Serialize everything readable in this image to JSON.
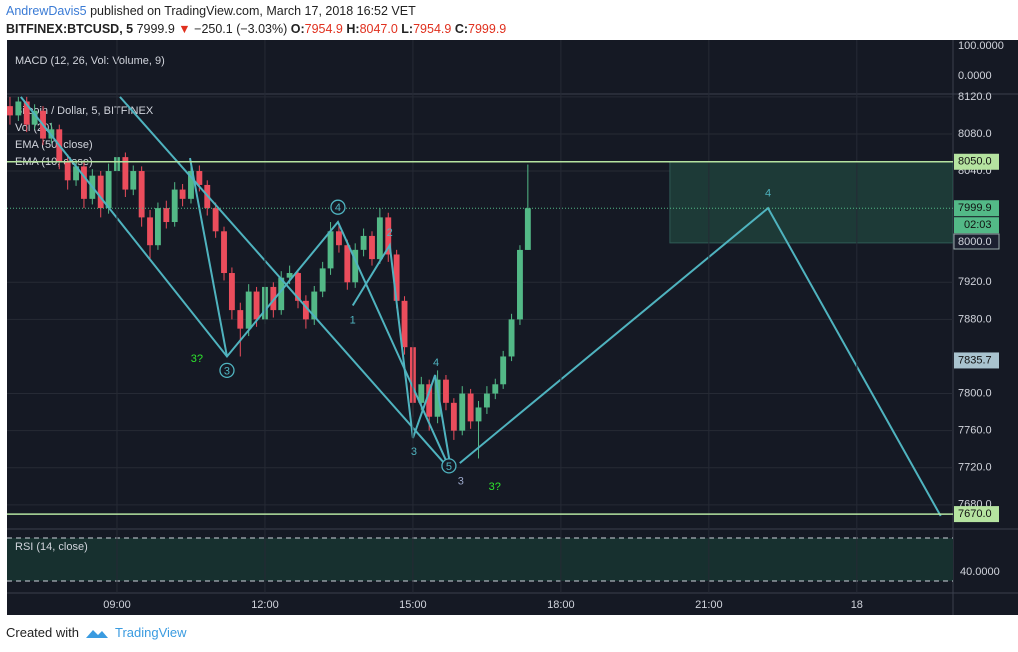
{
  "header": {
    "author": "AndrewDavis5",
    "published": "published on TradingView.com, March 17, 2018 16:52 VET",
    "symbol": "BITFINEX:BTCUSD, 5",
    "price": "7999.9",
    "change": "−250.1 (−3.03%)",
    "o_label": "O:",
    "o": "7954.9",
    "h_label": "H:",
    "h": "8047.0",
    "l_label": "L:",
    "l": "7954.9",
    "c_label": "C:",
    "c": "7999.9"
  },
  "footer": {
    "created": "Created with",
    "brand": "TradingView"
  },
  "chart_data": {
    "type": "candlestick",
    "macd_label": "MACD (12, 26, Vol: Volume, 9)",
    "macd_axis_labels": [
      "100.0000",
      "0.0000"
    ],
    "rsi_label": "RSI (14, close)",
    "rsi_axis_label": "40.0000",
    "legend": [
      "Bitcoin / Dollar, 5, BITFINEX",
      "Vol (20)",
      "EMA (50, close)",
      "EMA (10, close)"
    ],
    "countdown": "02:03",
    "box_label": "8000.0",
    "up_color": "#53b987",
    "down_color": "#eb4d5c",
    "grid": true,
    "xlim": [
      6.77,
      25.95
    ],
    "xticks": [
      {
        "value": 9,
        "label": "09:00"
      },
      {
        "value": 12,
        "label": "12:00"
      },
      {
        "value": 15,
        "label": "15:00"
      },
      {
        "value": 18,
        "label": "18:00"
      },
      {
        "value": 21,
        "label": "21:00"
      },
      {
        "value": 24,
        "label": "18"
      }
    ],
    "ylim": [
      7655,
      8122
    ],
    "yticks": [
      {
        "value": 8120,
        "label": "8120.0"
      },
      {
        "value": 8080,
        "label": "8080.0"
      },
      {
        "value": 8040,
        "label": "8040.0"
      },
      {
        "value": 7920,
        "label": "7920.0"
      },
      {
        "value": 7880,
        "label": "7880.0"
      },
      {
        "value": 7800,
        "label": "7800.0"
      },
      {
        "value": 7760,
        "label": "7760.0"
      },
      {
        "value": 7720,
        "label": "7720.0"
      },
      {
        "value": 7680,
        "label": "7680.0"
      }
    ],
    "candles": {
      "x": [
        6.83,
        7,
        7.17,
        7.33,
        7.5,
        7.67,
        7.83,
        8,
        8.17,
        8.33,
        8.5,
        8.67,
        8.83,
        9,
        9.17,
        9.33,
        9.5,
        9.67,
        9.83,
        10,
        10.17,
        10.33,
        10.5,
        10.67,
        10.83,
        11,
        11.17,
        11.33,
        11.5,
        11.67,
        11.83,
        12,
        12.17,
        12.33,
        12.5,
        12.67,
        12.83,
        13,
        13.17,
        13.33,
        13.5,
        13.67,
        13.83,
        14,
        14.17,
        14.33,
        14.5,
        14.67,
        14.83,
        15,
        15.17,
        15.33,
        15.5,
        15.67,
        15.83,
        16,
        16.17,
        16.33,
        16.5,
        16.67,
        16.83,
        17,
        17.17,
        17.33
      ],
      "open": [
        8110,
        8100,
        8115,
        8090,
        8105,
        8075,
        8085,
        8050,
        8030,
        8045,
        8010,
        8035,
        8000,
        8040,
        8055,
        8020,
        8040,
        7990,
        7960,
        8000,
        7985,
        8020,
        8010,
        8040,
        8025,
        8000,
        7975,
        7930,
        7890,
        7870,
        7910,
        7880,
        7915,
        7890,
        7925,
        7930,
        7900,
        7880,
        7910,
        7935,
        7975,
        7960,
        7920,
        7955,
        7970,
        7945,
        7990,
        7950,
        7900,
        7850,
        7790,
        7810,
        7775,
        7815,
        7790,
        7760,
        7800,
        7770,
        7785,
        7800,
        7810,
        7840,
        7880,
        7954.9
      ],
      "high": [
        8120,
        8120,
        8120,
        8112,
        8110,
        8092,
        8090,
        8058,
        8052,
        8050,
        8042,
        8040,
        8048,
        8062,
        8060,
        8046,
        8045,
        7998,
        8006,
        8008,
        8028,
        8026,
        8052,
        8046,
        8030,
        8006,
        7980,
        7936,
        7898,
        7918,
        7915,
        7922,
        7920,
        7932,
        7938,
        7934,
        7906,
        7916,
        7942,
        7985,
        7982,
        7966,
        7962,
        7978,
        7975,
        8000,
        7995,
        7955,
        7905,
        7856,
        7818,
        7815,
        7825,
        7820,
        7795,
        7808,
        7805,
        7792,
        7808,
        7816,
        7846,
        7886,
        7960,
        8047
      ],
      "low": [
        8090,
        8094,
        8082,
        8085,
        8068,
        8070,
        8042,
        8020,
        8024,
        8000,
        8004,
        7990,
        7994,
        8034,
        8012,
        8014,
        7980,
        7945,
        7955,
        7978,
        7980,
        8002,
        8005,
        8018,
        7992,
        7968,
        7922,
        7880,
        7840,
        7862,
        7872,
        7875,
        7882,
        7885,
        7918,
        7892,
        7870,
        7874,
        7904,
        7928,
        7952,
        7912,
        7914,
        7948,
        7938,
        7940,
        7942,
        7892,
        7842,
        7775,
        7782,
        7760,
        7768,
        7782,
        7750,
        7755,
        7762,
        7730,
        7778,
        7794,
        7805,
        7835,
        7874,
        7954.9
      ],
      "close": [
        8100,
        8115,
        8090,
        8105,
        8075,
        8085,
        8050,
        8030,
        8045,
        8010,
        8035,
        8000,
        8040,
        8055,
        8020,
        8040,
        7990,
        7960,
        8000,
        7985,
        8020,
        8010,
        8040,
        8025,
        8000,
        7975,
        7930,
        7890,
        7870,
        7910,
        7880,
        7915,
        7890,
        7925,
        7930,
        7900,
        7880,
        7910,
        7935,
        7975,
        7960,
        7920,
        7955,
        7970,
        7945,
        7990,
        7950,
        7900,
        7850,
        7790,
        7810,
        7775,
        7815,
        7790,
        7760,
        7800,
        7770,
        7785,
        7800,
        7810,
        7840,
        7880,
        7954.9,
        7999.9
      ]
    },
    "levels": [
      {
        "value": 8050,
        "label": "8050.0",
        "color": "#b5e3a0",
        "style": "solid"
      },
      {
        "value": 7999.9,
        "label": "7999.9",
        "color": "#53b987",
        "style": "dotted"
      },
      {
        "value": 7835.7,
        "label": "7835.7",
        "color": "#a9c3cf",
        "style": "none"
      },
      {
        "value": 7670,
        "label": "7670.0",
        "color": "#b5e3a0",
        "style": "solid"
      }
    ],
    "zone": {
      "x": [
        20.21,
        25.95
      ],
      "y": [
        7962.5,
        8050
      ],
      "color": "#1d3a37"
    },
    "drawing_color": "#4fb3bf",
    "drawings": [
      {
        "points": [
          [
            7.05,
            8120
          ],
          [
            11.23,
            7840
          ],
          [
            13.48,
            7985
          ],
          [
            15.67,
            7728
          ]
        ]
      },
      {
        "points": [
          [
            9.06,
            8120
          ],
          [
            15.75,
            7718
          ]
        ]
      },
      {
        "points": [
          [
            10.48,
            8054
          ],
          [
            11.23,
            7840
          ]
        ]
      },
      {
        "points": [
          [
            13.78,
            7895
          ],
          [
            14.53,
            7960
          ],
          [
            15.0,
            7752
          ],
          [
            15.45,
            7820
          ],
          [
            15.75,
            7725
          ]
        ]
      },
      {
        "points": [
          [
            15.95,
            7725
          ],
          [
            22.2,
            8000
          ],
          [
            25.7,
            7668
          ]
        ]
      }
    ],
    "annotations": [
      {
        "text": "3?",
        "x": 10.62,
        "y": 7838,
        "color": "#2ee62e",
        "circled": false
      },
      {
        "text": "3",
        "x": 11.23,
        "y": 7825,
        "color": "#4fb3bf",
        "circled": true
      },
      {
        "text": "4",
        "x": 13.48,
        "y": 8001,
        "color": "#4fb3bf",
        "circled": true
      },
      {
        "text": "2",
        "x": 14.53,
        "y": 7974,
        "color": "#4fb3bf",
        "circled": false
      },
      {
        "text": "1",
        "x": 13.78,
        "y": 7880,
        "color": "#4fb3bf",
        "circled": false
      },
      {
        "text": "4",
        "x": 15.47,
        "y": 7834,
        "color": "#4fb3bf",
        "circled": false
      },
      {
        "text": "3",
        "x": 15.02,
        "y": 7738,
        "color": "#4fb3bf",
        "circled": false
      },
      {
        "text": "5",
        "x": 15.73,
        "y": 7722,
        "color": "#4fb3bf",
        "circled": true
      },
      {
        "text": "3",
        "x": 15.97,
        "y": 7706,
        "color": "#9aa6c8",
        "circled": false
      },
      {
        "text": "3?",
        "x": 16.66,
        "y": 7700,
        "color": "#2ee62e",
        "circled": false
      },
      {
        "text": "4",
        "x": 22.2,
        "y": 8017,
        "color": "#4fb3bf",
        "circled": false
      }
    ]
  }
}
